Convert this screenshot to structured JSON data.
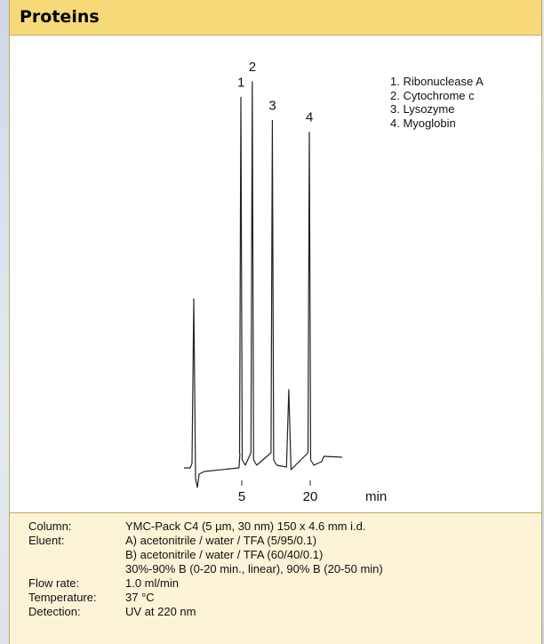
{
  "header": {
    "title": "Proteins"
  },
  "chart_data": {
    "type": "line",
    "x_unit": "min",
    "x_ticks": [
      5,
      20
    ],
    "peaks": [
      {
        "label": "1",
        "name": "Ribonuclease A",
        "retention_min": 4.8,
        "relative_height": 0.96
      },
      {
        "label": "2",
        "name": "Cytochrome c",
        "retention_min": 7.3,
        "relative_height": 1.0
      },
      {
        "label": "3",
        "name": "Lysozyme",
        "retention_min": 11.7,
        "relative_height": 0.9
      },
      {
        "label": "4",
        "name": "Myoglobin",
        "retention_min": 19.8,
        "relative_height": 0.87
      }
    ],
    "legend": [
      {
        "number": "1.",
        "name": "Ribonuclease A"
      },
      {
        "number": "2.",
        "name": "Cytochrome c"
      },
      {
        "number": "3.",
        "name": "Lysozyme"
      },
      {
        "number": "4.",
        "name": "Myoglobin"
      }
    ],
    "legend_position": "top-right",
    "grid": false,
    "line_color": "#222222"
  },
  "conditions": [
    {
      "label": "Column:",
      "values": [
        "YMC-Pack C4 (5 µm, 30 nm) 150 x 4.6 mm i.d."
      ]
    },
    {
      "label": "Eluent:",
      "values": [
        "A) acetonitrile / water / TFA (5/95/0.1)",
        "B) acetonitrile / water / TFA (60/40/0.1)",
        "30%-90% B (0-20 min., linear), 90% B (20-50 min)"
      ]
    },
    {
      "label": "Flow rate:",
      "values": [
        "1.0 ml/min"
      ]
    },
    {
      "label": "Temperature:",
      "values": [
        "37 °C"
      ]
    },
    {
      "label": "Detection:",
      "values": [
        "UV at 220 nm"
      ]
    }
  ],
  "colors": {
    "header_bg": "#f6d978",
    "conditions_bg": "#fdf3d6",
    "border": "#c8a85a"
  }
}
